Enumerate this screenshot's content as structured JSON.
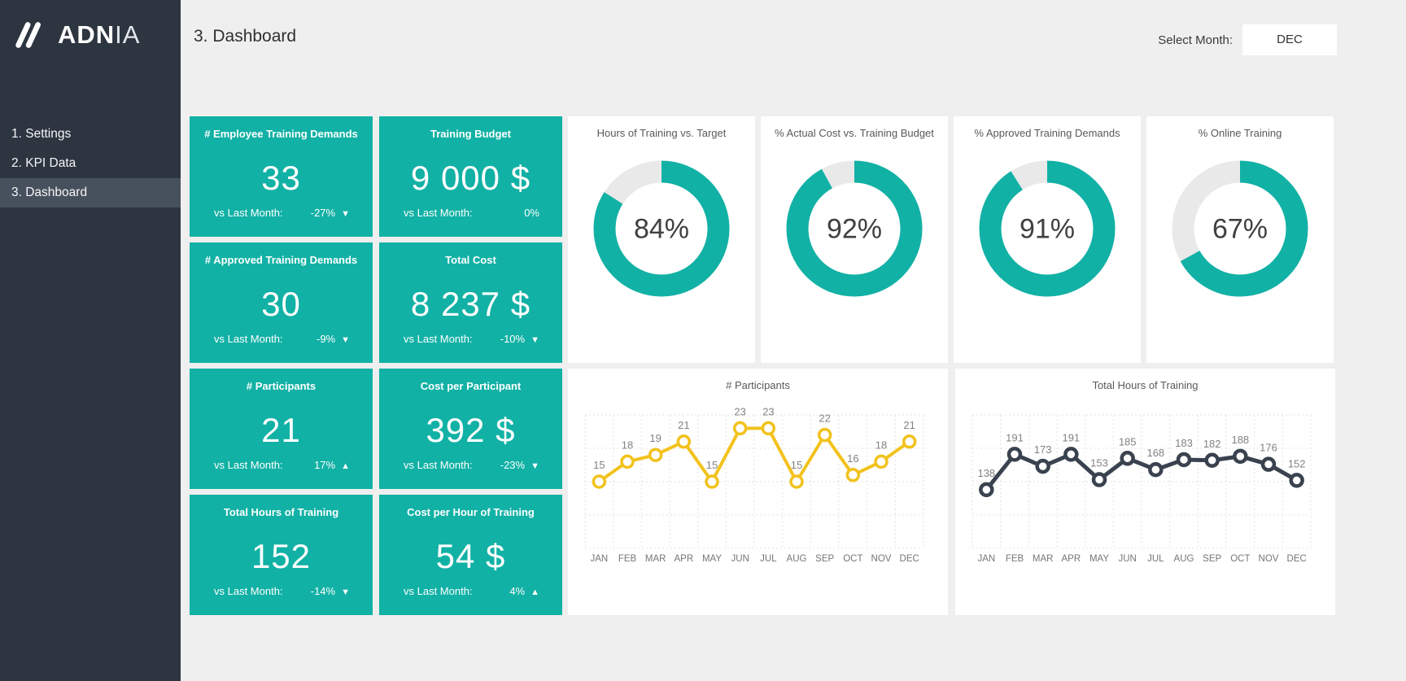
{
  "sidebar": {
    "logo_bold": "ADN",
    "logo_light": "IA",
    "items": [
      {
        "label": "1. Settings",
        "active": false
      },
      {
        "label": "2. KPI Data",
        "active": false
      },
      {
        "label": "3. Dashboard",
        "active": true
      }
    ]
  },
  "header": {
    "title": "3. Dashboard",
    "select_month_label": "Select Month:",
    "selected_month": "DEC"
  },
  "colors": {
    "accent_teal": "#12b1a5",
    "sidebar_bg": "#2d3541",
    "sidebar_active_bg": "#47515d",
    "page_bg": "#efefef",
    "donut_track": "#e9e9e9",
    "participants_line": "#f2c21d",
    "hours_line": "#39424e"
  },
  "kpi_cards": [
    {
      "title": "# Employee Training Demands",
      "value": "33",
      "vs_label": "vs Last Month:",
      "vs_value": "-27%",
      "trend": "down",
      "trend_icon": "▼"
    },
    {
      "title": "Training Budget",
      "value": "9 000 $",
      "vs_label": "vs Last Month:",
      "vs_value": "0%",
      "trend": "flat",
      "trend_icon": ""
    },
    {
      "title": "# Approved Training Demands",
      "value": "30",
      "vs_label": "vs Last Month:",
      "vs_value": "-9%",
      "trend": "down",
      "trend_icon": "▼"
    },
    {
      "title": "Total Cost",
      "value": "8 237 $",
      "vs_label": "vs Last Month:",
      "vs_value": "-10%",
      "trend": "down",
      "trend_icon": "▼"
    },
    {
      "title": "# Participants",
      "value": "21",
      "vs_label": "vs Last Month:",
      "vs_value": "17%",
      "trend": "up",
      "trend_icon": "▲"
    },
    {
      "title": "Cost per Participant",
      "value": "392 $",
      "vs_label": "vs Last Month:",
      "vs_value": "-23%",
      "trend": "down",
      "trend_icon": "▼"
    },
    {
      "title": "Total Hours of Training",
      "value": "152",
      "vs_label": "vs Last Month:",
      "vs_value": "-14%",
      "trend": "down",
      "trend_icon": "▼"
    },
    {
      "title": "Cost per Hour of Training",
      "value": "54 $",
      "vs_label": "vs Last Month:",
      "vs_value": "4%",
      "trend": "up",
      "trend_icon": "▲"
    }
  ],
  "chart_data": {
    "donuts": [
      {
        "type": "donut",
        "title": "Hours of Training vs. Target",
        "percent": 84,
        "percent_label": "84%"
      },
      {
        "type": "donut",
        "title": "% Actual Cost vs. Training Budget",
        "percent": 92,
        "percent_label": "92%"
      },
      {
        "type": "donut",
        "title": "% Approved Training Demands",
        "percent": 91,
        "percent_label": "91%"
      },
      {
        "type": "donut",
        "title": "% Online Training",
        "percent": 67,
        "percent_label": "67%"
      }
    ],
    "line_charts": [
      {
        "type": "line",
        "title": "# Participants",
        "categories": [
          "JAN",
          "FEB",
          "MAR",
          "APR",
          "MAY",
          "JUN",
          "JUL",
          "AUG",
          "SEP",
          "OCT",
          "NOV",
          "DEC"
        ],
        "values": [
          15,
          18,
          19,
          21,
          15,
          23,
          23,
          15,
          22,
          16,
          18,
          21
        ],
        "ylim": [
          5,
          25
        ],
        "grid_step": 5,
        "color": "#f2c21d",
        "line_width": 4
      },
      {
        "type": "line",
        "title": "Total Hours of Training",
        "categories": [
          "JAN",
          "FEB",
          "MAR",
          "APR",
          "MAY",
          "JUN",
          "JUL",
          "AUG",
          "SEP",
          "OCT",
          "NOV",
          "DEC"
        ],
        "values": [
          138,
          191,
          173,
          191,
          153,
          185,
          168,
          183,
          182,
          188,
          176,
          152
        ],
        "ylim": [
          50,
          250
        ],
        "grid_step": 50,
        "color": "#39424e",
        "line_width": 5
      }
    ]
  }
}
